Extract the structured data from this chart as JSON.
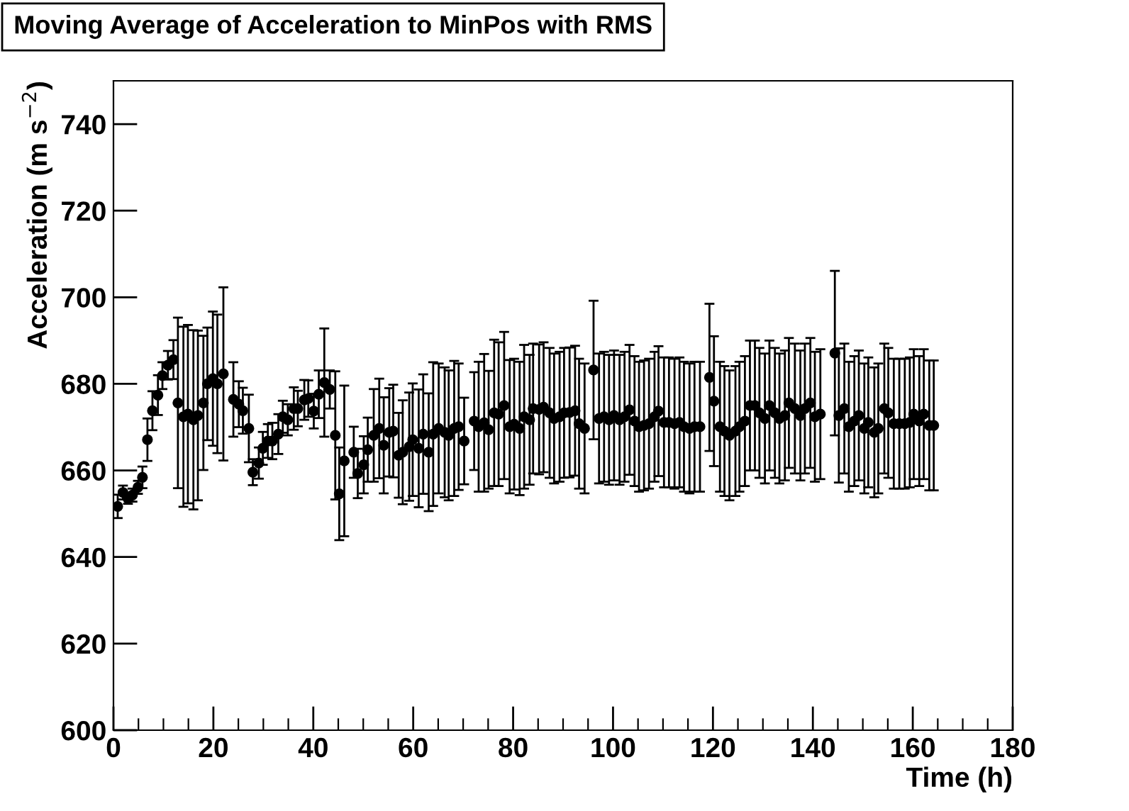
{
  "chart_data": {
    "type": "scatter",
    "title": "Moving Average of Acceleration to MinPos with RMS",
    "xlabel": "Time (h)",
    "ylabel": "Acceleration (m s$^{−2}$)",
    "x": [
      0.85,
      1.9,
      2.9,
      3.8,
      4.9,
      5.8,
      6.8,
      7.8,
      8.9,
      9.8,
      10.9,
      12.0,
      12.9,
      14.0,
      14.9,
      16.0,
      16.9,
      18.0,
      18.8,
      19.9,
      20.8,
      22.0,
      24.0,
      25.1,
      25.9,
      27.1,
      27.9,
      29.1,
      29.9,
      30.9,
      31.8,
      33.0,
      33.9,
      34.9,
      36.1,
      36.9,
      38.2,
      39.0,
      40.1,
      41.1,
      42.2,
      43.3,
      44.4,
      45.2,
      46.2,
      48.1,
      48.9,
      50.1,
      50.9,
      52.1,
      53.2,
      54.1,
      55.2,
      56.0,
      57.1,
      57.9,
      59.2,
      59.9,
      61.1,
      62.0,
      63.1,
      64.0,
      65.1,
      66.3,
      67.1,
      68.2,
      69.1,
      70.2,
      72.2,
      73.1,
      74.2,
      75.1,
      76.2,
      77.1,
      78.2,
      79.3,
      80.2,
      81.3,
      82.2,
      83.3,
      84.0,
      85.2,
      86.1,
      87.3,
      88.2,
      89.3,
      90.2,
      91.3,
      92.4,
      93.2,
      94.3,
      96.1,
      97.2,
      98.2,
      99.2,
      100.2,
      101.3,
      102.3,
      103.3,
      104.3,
      105.2,
      106.2,
      107.2,
      108.3,
      109.1,
      110.2,
      111.2,
      112.3,
      113.3,
      114.2,
      115.3,
      116.3,
      117.4,
      119.3,
      120.2,
      121.4,
      122.3,
      123.3,
      124.5,
      125.3,
      126.4,
      127.4,
      128.4,
      129.3,
      130.4,
      131.3,
      132.4,
      133.3,
      134.4,
      135.2,
      136.4,
      137.5,
      138.4,
      139.5,
      140.4,
      141.5,
      144.4,
      145.2,
      146.3,
      147.2,
      148.3,
      149.2,
      150.3,
      151.1,
      152.3,
      153.1,
      154.3,
      155.1,
      156.2,
      157.3,
      158.4,
      159.4,
      160.2,
      161.3,
      162.2,
      163.3,
      164.2
    ],
    "values": [
      651.7,
      654.9,
      653.5,
      654.3,
      656.1,
      658.4,
      667.1,
      673.8,
      677.4,
      681.9,
      684.3,
      685.6,
      675.6,
      672.4,
      673.0,
      671.7,
      672.7,
      675.6,
      680.0,
      681.2,
      680.0,
      682.3,
      676.4,
      675.3,
      673.8,
      669.7,
      659.6,
      661.7,
      665.1,
      666.8,
      666.8,
      668.4,
      672.4,
      671.7,
      674.3,
      674.3,
      676.3,
      676.6,
      673.7,
      677.6,
      680.3,
      678.7,
      668.1,
      654.6,
      662.2,
      664.2,
      659.3,
      661.3,
      664.8,
      668.1,
      669.7,
      665.8,
      668.8,
      669.1,
      663.5,
      664.2,
      665.5,
      667.1,
      665.1,
      668.4,
      664.2,
      668.4,
      669.7,
      668.8,
      668.1,
      669.7,
      670.1,
      666.8,
      671.4,
      670.1,
      671.0,
      669.4,
      673.3,
      673.0,
      675.0,
      670.1,
      670.7,
      669.7,
      672.4,
      671.7,
      674.3,
      674.1,
      674.6,
      673.3,
      672.0,
      672.4,
      673.3,
      673.4,
      673.8,
      670.8,
      669.7,
      683.2,
      672.0,
      672.4,
      671.7,
      672.7,
      671.7,
      672.4,
      674.0,
      671.4,
      670.1,
      670.4,
      670.8,
      672.4,
      673.7,
      671.1,
      671.1,
      670.8,
      671.1,
      670.1,
      669.7,
      670.1,
      670.1,
      681.5,
      676.0,
      670.1,
      669.1,
      668.1,
      669.1,
      670.1,
      671.4,
      675.0,
      675.0,
      673.3,
      672.0,
      675.0,
      673.3,
      672.0,
      672.7,
      675.6,
      674.3,
      672.7,
      674.3,
      675.6,
      672.4,
      673.0,
      687.1,
      672.7,
      674.3,
      670.1,
      671.4,
      672.7,
      669.7,
      671.1,
      668.8,
      669.7,
      674.3,
      673.3,
      670.8,
      670.8,
      670.8,
      671.1,
      673.0,
      671.4,
      673.0,
      670.4,
      670.4
    ],
    "errors": [
      2.7,
      1.6,
      1.2,
      1.5,
      1.5,
      2.5,
      4.9,
      4.5,
      4.6,
      3.1,
      3.3,
      4.5,
      19.7,
      20.8,
      20.6,
      20.7,
      19.6,
      15.5,
      13,
      15.5,
      16,
      20,
      8.6,
      5.3,
      5.3,
      7.8,
      3.0,
      3.6,
      3.8,
      3.9,
      4.2,
      4.6,
      3.7,
      3.6,
      4.9,
      4.1,
      4.6,
      4.2,
      4,
      5.5,
      12.5,
      4.4,
      14.8,
      10.7,
      17.4,
      5.9,
      5.7,
      6.6,
      7.4,
      10.7,
      11.5,
      11.1,
      10.2,
      10.7,
      9.8,
      12,
      12.5,
      13,
      13.6,
      13.8,
      13.6,
      16.6,
      15,
      15,
      15,
      15.6,
      14.6,
      10,
      11.3,
      15,
      15.9,
      13.6,
      16.9,
      16.6,
      17,
      15.4,
      15.1,
      15.4,
      16.6,
      15,
      15,
      15,
      15,
      15,
      15,
      15,
      15,
      15,
      15,
      15,
      15,
      16,
      15,
      15,
      15,
      15,
      15,
      15,
      15,
      15,
      15,
      15,
      15,
      15,
      15,
      15,
      15,
      15,
      15,
      15,
      15,
      15,
      15,
      17,
      15,
      15,
      15,
      15,
      15,
      15,
      15,
      15,
      15,
      15,
      15,
      15,
      15,
      15,
      15,
      15,
      15,
      15,
      15,
      15,
      15,
      15,
      19,
      15.5,
      15,
      15,
      15,
      15,
      15,
      15,
      15,
      15,
      15,
      15,
      15,
      15,
      15,
      15,
      15,
      15,
      15,
      15,
      15
    ],
    "color": "#000000",
    "marker": "circle",
    "xlim": [
      0,
      180
    ],
    "ylim": [
      600,
      750
    ],
    "xticks": [
      0,
      20,
      40,
      60,
      80,
      100,
      120,
      140,
      160,
      180
    ],
    "yticks": [
      600,
      620,
      640,
      660,
      680,
      700,
      720,
      740
    ],
    "grid": false
  }
}
